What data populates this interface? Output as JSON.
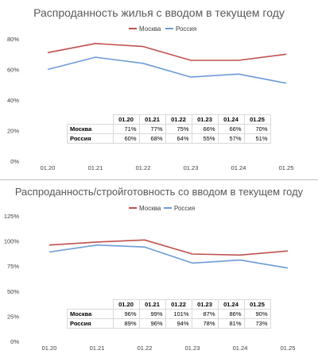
{
  "colors": {
    "moscow": "#c0504d",
    "russia": "#6d9bd6",
    "grid": "#d9d9d9",
    "text": "#404040"
  },
  "chart_data": [
    {
      "type": "line",
      "title": "Распроданность жилья с вводом в текущем году",
      "categories": [
        "01.20",
        "01.21",
        "01.22",
        "01.23",
        "01.24",
        "01.25"
      ],
      "series": [
        {
          "name": "Москва",
          "values": [
            71,
            77,
            75,
            66,
            66,
            70
          ]
        },
        {
          "name": "Россия",
          "values": [
            60,
            68,
            64,
            55,
            57,
            51
          ]
        }
      ],
      "ylim": [
        0,
        80
      ],
      "yticks": [
        0,
        20,
        40,
        60,
        80
      ],
      "ytick_labels": [
        "0%",
        "20%",
        "40%",
        "60%",
        "80%"
      ],
      "legend": "top",
      "grid": false,
      "table": {
        "headers": [
          "01.20",
          "01.21",
          "01.22",
          "01.23",
          "01.24",
          "01.25"
        ],
        "rows": [
          {
            "label": "Москва",
            "cells": [
              "71%",
              "77%",
              "75%",
              "66%",
              "66%",
              "70%"
            ]
          },
          {
            "label": "Россия",
            "cells": [
              "60%",
              "68%",
              "64%",
              "55%",
              "57%",
              "51%"
            ]
          }
        ]
      }
    },
    {
      "type": "line",
      "title": "Распроданность/стройготовность со вводом в текущем году",
      "categories": [
        "01.20",
        "01.21",
        "01.22",
        "01.23",
        "01.24",
        "01.25"
      ],
      "series": [
        {
          "name": "Москва",
          "values": [
            96,
            99,
            101,
            87,
            86,
            90
          ]
        },
        {
          "name": "Россия",
          "values": [
            89,
            96,
            94,
            78,
            81,
            73
          ]
        }
      ],
      "ylim": [
        0,
        125
      ],
      "yticks": [
        0,
        25,
        50,
        75,
        100,
        125
      ],
      "ytick_labels": [
        "0%",
        "25%",
        "50%",
        "75%",
        "100%",
        "125%"
      ],
      "legend": "top",
      "grid": false,
      "table": {
        "headers": [
          "01.20",
          "01.21",
          "01.22",
          "01.23",
          "01.24",
          "01.25"
        ],
        "rows": [
          {
            "label": "Москва",
            "cells": [
              "96%",
              "99%",
              "101%",
              "87%",
              "86%",
              "90%"
            ]
          },
          {
            "label": "Россия",
            "cells": [
              "89%",
              "96%",
              "94%",
              "78%",
              "81%",
              "73%"
            ]
          }
        ]
      }
    }
  ]
}
